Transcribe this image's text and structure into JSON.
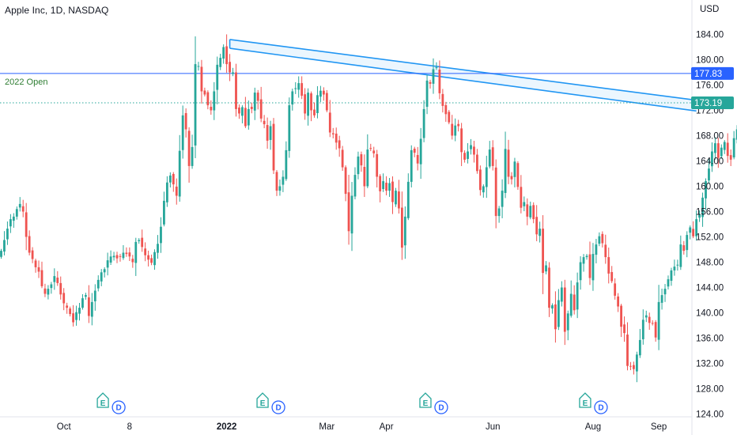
{
  "header": {
    "title": "Apple Inc, 1D, NASDAQ"
  },
  "chart_data": {
    "type": "candlestick",
    "currency_label": "USD",
    "y_ticks": [
      124,
      128,
      132,
      136,
      140,
      144,
      148,
      152,
      156,
      160,
      164,
      168,
      172,
      176,
      180,
      184
    ],
    "y_tick_labels": [
      "124.00",
      "128.00",
      "132.00",
      "136.00",
      "140.00",
      "144.00",
      "148.00",
      "152.00",
      "156.00",
      "160.00",
      "164.00",
      "168.00",
      "172.00",
      "176.00",
      "180.00",
      "184.00"
    ],
    "ylim": [
      123,
      188
    ],
    "x_tick_labels": [
      {
        "text": "Oct",
        "bar": 20,
        "bold": false
      },
      {
        "text": "8",
        "bar": 41,
        "bold": false
      },
      {
        "text": "2022",
        "bar": 72,
        "bold": true
      },
      {
        "text": "Mar",
        "bar": 104,
        "bold": false
      },
      {
        "text": "Apr",
        "bar": 123,
        "bold": false
      },
      {
        "text": "Jun",
        "bar": 157,
        "bold": false
      },
      {
        "text": "Aug",
        "bar": 189,
        "bold": false
      },
      {
        "text": "Sep",
        "bar": 210,
        "bold": false
      }
    ],
    "levels": {
      "open_2022": {
        "label": "2022 Open",
        "value": 177.83,
        "tag": "177.83",
        "color": "#2962ff"
      },
      "last_price": {
        "value": 173.19,
        "tag": "173.19",
        "color": "#26a69a"
      }
    },
    "trend_channel": {
      "color": "#2196f3",
      "fill": "#e3f2fd",
      "upper": {
        "start": {
          "bar": 73,
          "price": 183.2
        },
        "end": {
          "bar": 222,
          "price": 173.6
        }
      },
      "lower": {
        "start": {
          "bar": 73,
          "price": 181.8
        },
        "end": {
          "bar": 222,
          "price": 171.9
        }
      }
    },
    "events": [
      {
        "bar": 35,
        "labels": [
          "E",
          "D"
        ]
      },
      {
        "bar": 86,
        "labels": [
          "E",
          "D"
        ]
      },
      {
        "bar": 138,
        "labels": [
          "E",
          "D"
        ]
      },
      {
        "bar": 189,
        "labels": [
          "E",
          "D"
        ]
      }
    ],
    "up_color": "#26a69a",
    "down_color": "#ef5350",
    "closes": [
      149.8,
      151.5,
      153.3,
      154.8,
      155.2,
      156.4,
      157.2,
      156.0,
      152.0,
      149.5,
      148.5,
      147.2,
      146.5,
      144.2,
      143.0,
      143.8,
      144.5,
      145.8,
      144.7,
      142.9,
      141.5,
      140.8,
      139.8,
      138.5,
      140.1,
      140.8,
      142.3,
      142.8,
      139.5,
      141.7,
      143.5,
      145.2,
      146.4,
      146.9,
      148.3,
      148.9,
      149.0,
      148.6,
      148.9,
      149.5,
      149.3,
      148.9,
      148.0,
      151.2,
      151.5,
      150.4,
      149.1,
      148.4,
      147.9,
      149.6,
      150.9,
      153.6,
      157.7,
      160.6,
      161.7,
      160.3,
      158.5,
      165.6,
      171.2,
      169.0,
      163.2,
      166.2,
      179.3,
      179.0,
      175.0,
      174.5,
      172.8,
      172.0,
      175.0,
      179.2,
      180.3,
      182.0,
      179.3,
      178.0,
      178.0,
      172.2,
      171.5,
      172.5,
      169.5,
      172.2,
      172.2,
      174.8,
      173.5,
      170.7,
      169.8,
      167.2,
      169.5,
      162.5,
      159.3,
      160.0,
      161.5,
      165.7,
      172.8,
      175.0,
      175.5,
      176.3,
      174.3,
      171.5,
      174.8,
      172.0,
      171.2,
      174.4,
      175.1,
      174.5,
      172.0,
      168.5,
      168.2,
      166.9,
      166.0,
      163.0,
      158.8,
      152.9,
      158.5,
      161.8,
      164.7,
      163.3,
      160.0,
      165.8,
      166.0,
      165.2,
      161.5,
      159.2,
      160.8,
      159.3,
      160.5,
      157.5,
      159.3,
      156.5,
      150.3,
      155.2,
      160.7,
      165.7,
      165.3,
      163.6,
      167.5,
      172.2,
      176.7,
      176.2,
      178.5,
      178.8,
      174.7,
      172.7,
      171.4,
      170.1,
      168.0,
      169.6,
      169.5,
      165.4,
      164.2,
      165.5,
      166.5,
      165.0,
      162.4,
      159.4,
      160.0,
      163.0,
      165.8,
      163.2,
      155.3,
      156.5,
      159.3,
      165.9,
      161.5,
      161.1,
      163.9,
      159.9,
      156.6,
      157.5,
      155.2,
      156.9,
      154.8,
      152.4,
      153.3,
      146.3,
      147.5,
      140.8,
      141.2,
      137.4,
      142.0,
      144.0,
      137.0,
      139.9,
      143.0,
      140.4,
      144.8,
      148.0,
      148.8,
      149.0,
      145.5,
      149.3,
      150.8,
      152.1,
      151.0,
      148.8,
      146.2,
      145.0,
      142.7,
      141.0,
      137.8,
      136.8,
      131.6,
      131.5,
      131.1,
      133.4,
      135.7,
      138.9,
      139.6,
      138.4,
      138.3,
      136.1,
      141.7,
      142.8,
      143.8,
      145.3,
      146.7,
      147.3,
      147.6,
      150.8,
      149.8,
      152.3,
      153.5,
      152.1,
      154.8,
      155.5,
      158.2,
      160.8,
      162.8,
      165.5,
      166.8,
      164.5,
      166.1,
      167.0,
      164.8,
      164.2,
      167.6,
      169.0,
      170.1,
      171.5,
      173.2
    ]
  }
}
